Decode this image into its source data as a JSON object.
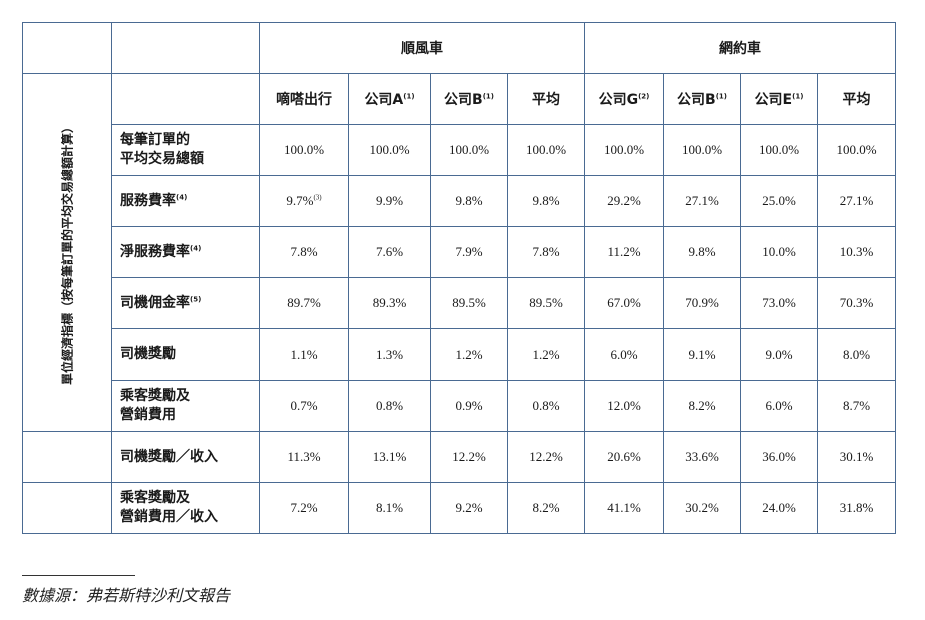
{
  "header": {
    "group_shunfeng": "順風車",
    "group_wangyue": "網約車"
  },
  "columns": [
    {
      "label": "嘀嗒出行",
      "note": ""
    },
    {
      "label": "公司A",
      "note": "(1)"
    },
    {
      "label": "公司B",
      "note": "(1)"
    },
    {
      "label": "平均",
      "note": ""
    },
    {
      "label": "公司G",
      "note": "(2)"
    },
    {
      "label": "公司B",
      "note": "(1)"
    },
    {
      "label": "公司E",
      "note": "(1)"
    },
    {
      "label": "平均",
      "note": ""
    }
  ],
  "side_label": "單位經濟指標（按每筆訂單的平均交易總額計算）",
  "rows": [
    {
      "line1": "每筆訂單的",
      "line2": "平均交易總額",
      "note": "",
      "values": [
        "100.0%",
        "100.0%",
        "100.0%",
        "100.0%",
        "100.0%",
        "100.0%",
        "100.0%",
        "100.0%"
      ]
    },
    {
      "line1": "服務費率",
      "line2": "",
      "note": "(4)",
      "first_note": "(3)",
      "values": [
        "9.7%",
        "9.9%",
        "9.8%",
        "9.8%",
        "29.2%",
        "27.1%",
        "25.0%",
        "27.1%"
      ]
    },
    {
      "line1": "淨服務費率",
      "line2": "",
      "note": "(4)",
      "values": [
        "7.8%",
        "7.6%",
        "7.9%",
        "7.8%",
        "11.2%",
        "9.8%",
        "10.0%",
        "10.3%"
      ]
    },
    {
      "line1": "司機佣金率",
      "line2": "",
      "note": "(5)",
      "values": [
        "89.7%",
        "89.3%",
        "89.5%",
        "89.5%",
        "67.0%",
        "70.9%",
        "73.0%",
        "70.3%"
      ]
    },
    {
      "line1": "司機獎勵",
      "line2": "",
      "note": "",
      "values": [
        "1.1%",
        "1.3%",
        "1.2%",
        "1.2%",
        "6.0%",
        "9.1%",
        "9.0%",
        "8.0%"
      ]
    },
    {
      "line1": "乘客獎勵及",
      "line2": "營銷費用",
      "note": "",
      "values": [
        "0.7%",
        "0.8%",
        "0.9%",
        "0.8%",
        "12.0%",
        "8.2%",
        "6.0%",
        "8.7%"
      ]
    },
    {
      "line1": "司機獎勵／收入",
      "line2": "",
      "note": "",
      "values": [
        "11.3%",
        "13.1%",
        "12.2%",
        "12.2%",
        "20.6%",
        "33.6%",
        "36.0%",
        "30.1%"
      ]
    },
    {
      "line1": "乘客獎勵及",
      "line2": "營銷費用／收入",
      "note": "",
      "values": [
        "7.2%",
        "8.1%",
        "9.2%",
        "8.2%",
        "41.1%",
        "30.2%",
        "24.0%",
        "31.8%"
      ]
    }
  ],
  "footer": {
    "source": "數據源：弗若斯特沙利文報告"
  },
  "colors": {
    "border": "#4a6a92",
    "text": "#1a1a1a"
  }
}
